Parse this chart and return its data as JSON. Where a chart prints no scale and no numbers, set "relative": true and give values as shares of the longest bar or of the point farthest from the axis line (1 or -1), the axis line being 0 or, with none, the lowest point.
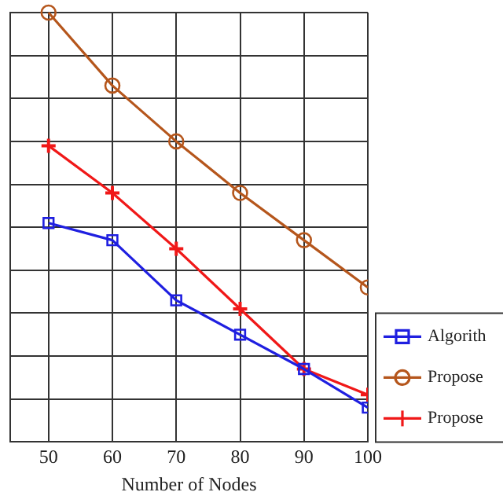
{
  "chart_data": {
    "type": "line",
    "xlabel": "Number of Nodes",
    "x": [
      50,
      60,
      70,
      80,
      90,
      100
    ],
    "xlim": [
      44,
      100
    ],
    "xticks": [
      50,
      60,
      70,
      80,
      90,
      100
    ],
    "relative": true,
    "grid": true,
    "legend": "bottom right",
    "line_style": "solid",
    "series": [
      {
        "name": "Algorith",
        "color": "#1f1fe0",
        "marker": "square",
        "values": [
          0.51,
          0.47,
          0.33,
          0.25,
          0.17,
          0.08
        ]
      },
      {
        "name": "Propose",
        "color": "#b5561c",
        "marker": "circle",
        "values": [
          1,
          0.83,
          0.7,
          0.58,
          0.47,
          0.36
        ]
      },
      {
        "name": "Propose",
        "color": "#f01818",
        "marker": "cross",
        "values": [
          0.69,
          0.58,
          0.45,
          0.31,
          0.17,
          0.11
        ]
      }
    ]
  }
}
